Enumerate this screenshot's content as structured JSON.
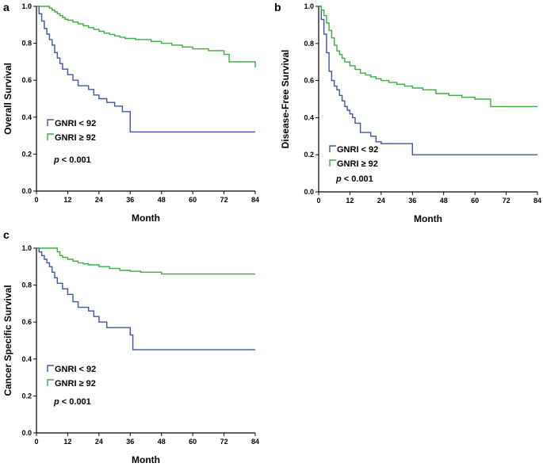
{
  "chart_data": [
    {
      "type": "line",
      "panel_label": "a",
      "title": "",
      "xlabel": "Month",
      "ylabel": "Overall Survival",
      "xlim": [
        0,
        84
      ],
      "ylim": [
        0.0,
        1.0
      ],
      "x_ticks": [
        "0",
        "12",
        "24",
        "36",
        "48",
        "60",
        "72",
        "84"
      ],
      "y_ticks": [
        "0.0",
        "0.2",
        "0.4",
        "0.6",
        "0.8",
        "1.0"
      ],
      "grid": false,
      "p_value_prefix": "p",
      "p_value_text": "< 0.001",
      "series": [
        {
          "name": "GNRI < 92",
          "color": "#3b55a0",
          "x": [
            0,
            1,
            2,
            3,
            4,
            5,
            6,
            7,
            8,
            9,
            10,
            12,
            14,
            16,
            18,
            20,
            22,
            24,
            27,
            30,
            33,
            36,
            84
          ],
          "y": [
            1.0,
            0.96,
            0.92,
            0.88,
            0.85,
            0.82,
            0.79,
            0.75,
            0.72,
            0.69,
            0.66,
            0.63,
            0.6,
            0.57,
            0.57,
            0.55,
            0.52,
            0.5,
            0.48,
            0.46,
            0.43,
            0.32,
            0.32
          ]
        },
        {
          "name": "GNRI ≥ 92",
          "color": "#3dab3f",
          "x": [
            0,
            5,
            6,
            7,
            8,
            9,
            10,
            11,
            12,
            14,
            16,
            18,
            20,
            22,
            24,
            26,
            28,
            30,
            32,
            34,
            38,
            44,
            48,
            52,
            56,
            60,
            66,
            72,
            74,
            84
          ],
          "y": [
            1.0,
            0.99,
            0.98,
            0.97,
            0.96,
            0.95,
            0.94,
            0.93,
            0.925,
            0.915,
            0.905,
            0.895,
            0.885,
            0.875,
            0.865,
            0.855,
            0.848,
            0.84,
            0.833,
            0.826,
            0.82,
            0.81,
            0.8,
            0.79,
            0.78,
            0.77,
            0.76,
            0.74,
            0.7,
            0.67
          ]
        }
      ]
    },
    {
      "type": "line",
      "panel_label": "b",
      "title": "",
      "xlabel": "Month",
      "ylabel": "Disease-Free Survival",
      "xlim": [
        0,
        84
      ],
      "ylim": [
        0.0,
        1.0
      ],
      "x_ticks": [
        "0",
        "12",
        "24",
        "36",
        "48",
        "60",
        "72",
        "84"
      ],
      "y_ticks": [
        "0.0",
        "0.2",
        "0.4",
        "0.6",
        "0.8",
        "1.0"
      ],
      "grid": false,
      "p_value_prefix": "p",
      "p_value_text": "< 0.001",
      "series": [
        {
          "name": "GNRI < 92",
          "color": "#3b55a0",
          "x": [
            0,
            1,
            2,
            3,
            4,
            5,
            6,
            7,
            8,
            9,
            10,
            11,
            12,
            13,
            14,
            16,
            18,
            20,
            22,
            24,
            30,
            36,
            84
          ],
          "y": [
            1.0,
            0.93,
            0.85,
            0.75,
            0.65,
            0.6,
            0.57,
            0.55,
            0.52,
            0.49,
            0.46,
            0.44,
            0.42,
            0.4,
            0.37,
            0.32,
            0.32,
            0.3,
            0.27,
            0.26,
            0.26,
            0.2,
            0.2
          ]
        },
        {
          "name": "GNRI ≥ 92",
          "color": "#3dab3f",
          "x": [
            0,
            1,
            2,
            3,
            4,
            5,
            6,
            7,
            8,
            9,
            10,
            12,
            14,
            16,
            18,
            20,
            22,
            24,
            27,
            30,
            33,
            36,
            40,
            45,
            50,
            55,
            60,
            66,
            84
          ],
          "y": [
            1.0,
            0.98,
            0.95,
            0.91,
            0.87,
            0.83,
            0.79,
            0.76,
            0.74,
            0.72,
            0.7,
            0.68,
            0.66,
            0.64,
            0.63,
            0.62,
            0.61,
            0.6,
            0.59,
            0.58,
            0.57,
            0.56,
            0.55,
            0.53,
            0.52,
            0.51,
            0.5,
            0.46,
            0.46
          ]
        }
      ]
    },
    {
      "type": "line",
      "panel_label": "c",
      "title": "",
      "xlabel": "Month",
      "ylabel": "Cancer Specific Survival",
      "xlim": [
        0,
        84
      ],
      "ylim": [
        0.0,
        1.0
      ],
      "x_ticks": [
        "0",
        "12",
        "24",
        "36",
        "48",
        "60",
        "72",
        "84"
      ],
      "y_ticks": [
        "0.0",
        "0.2",
        "0.4",
        "0.6",
        "0.8",
        "1.0"
      ],
      "grid": false,
      "p_value_prefix": "p",
      "p_value_text": "< 0.001",
      "series": [
        {
          "name": "GNRI < 92",
          "color": "#3b55a0",
          "x": [
            0,
            1,
            2,
            3,
            4,
            5,
            6,
            7,
            8,
            10,
            12,
            14,
            16,
            18,
            20,
            22,
            24,
            27,
            30,
            33,
            36,
            37,
            84
          ],
          "y": [
            1.0,
            0.98,
            0.96,
            0.94,
            0.92,
            0.9,
            0.87,
            0.84,
            0.81,
            0.78,
            0.75,
            0.71,
            0.68,
            0.68,
            0.66,
            0.63,
            0.6,
            0.57,
            0.57,
            0.57,
            0.53,
            0.45,
            0.45
          ]
        },
        {
          "name": "GNRI ≥ 92",
          "color": "#3dab3f",
          "x": [
            0,
            8,
            9,
            10,
            12,
            14,
            16,
            18,
            20,
            24,
            28,
            32,
            36,
            40,
            48,
            60,
            84
          ],
          "y": [
            1.0,
            0.98,
            0.96,
            0.95,
            0.94,
            0.93,
            0.92,
            0.915,
            0.91,
            0.9,
            0.89,
            0.88,
            0.875,
            0.87,
            0.86,
            0.86,
            0.86
          ]
        }
      ]
    }
  ]
}
